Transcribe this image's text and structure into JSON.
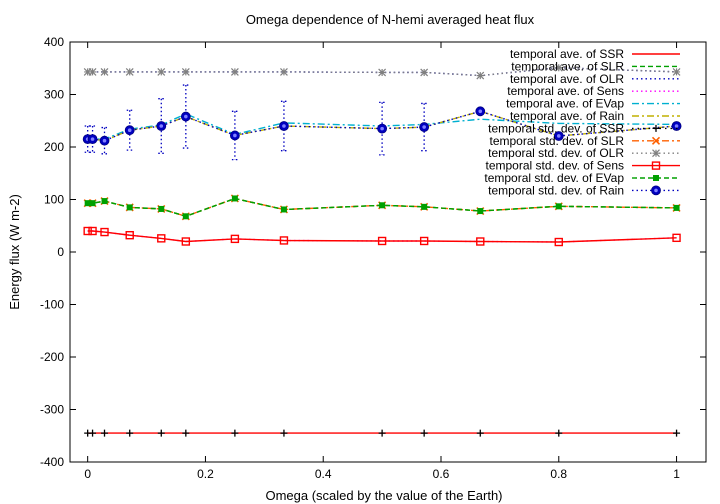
{
  "chart_data": {
    "type": "line",
    "title": "Omega dependence of N-hemi averaged heat flux",
    "xlabel": "Omega (scaled by the value of the Earth)",
    "ylabel": "Energy flux (W m-2)",
    "xlim": [
      -0.03,
      1.05
    ],
    "ylim": [
      -400,
      400
    ],
    "xticks": [
      0,
      0.2,
      0.4,
      0.6,
      0.8,
      1
    ],
    "xtick_labels": [
      "0",
      "0.2",
      "0.4",
      "0.6",
      "0.8",
      "1"
    ],
    "yticks": [
      -400,
      -300,
      -200,
      -100,
      0,
      100,
      200,
      300,
      400
    ],
    "ytick_labels": [
      "-400",
      "-300",
      "-200",
      "-100",
      "0",
      "100",
      "200",
      "300",
      "400"
    ],
    "grid": false,
    "legend_position": "top-right",
    "x": [
      0,
      0.0083,
      0.0286,
      0.0714,
      0.125,
      0.1667,
      0.25,
      0.3333,
      0.5,
      0.5714,
      0.6667,
      0.8,
      1
    ],
    "series": [
      {
        "name": "temporal ave. of SSR",
        "color": "#ff0000",
        "style": "solid",
        "values": [
          -345,
          -345,
          -345,
          -345,
          -345,
          -345,
          -345,
          -345,
          -345,
          -345,
          -345,
          -345,
          -345
        ]
      },
      {
        "name": "temporal ave. of SLR",
        "color": "#00a000",
        "style": "dashed",
        "values": [
          93,
          93,
          97,
          85,
          82,
          68,
          102,
          81,
          89,
          86,
          78,
          87,
          84
        ]
      },
      {
        "name": "temporal ave. of OLR",
        "color": "#0000c0",
        "style": "dotted",
        "values": [
          343,
          343,
          343,
          343,
          343,
          343,
          343,
          343,
          342,
          342,
          336,
          351,
          343
        ]
      },
      {
        "name": "temporal ave. of Sens",
        "color": "#ff00ff",
        "style": "dotted",
        "values": [
          40,
          40,
          38,
          32,
          26,
          20,
          25,
          22,
          21,
          21,
          20,
          19,
          27
        ]
      },
      {
        "name": "temporal ave. of EVap",
        "color": "#00b0d0",
        "style": "dashdot",
        "values": [
          215,
          215,
          215,
          234,
          242,
          263,
          224,
          246,
          240,
          243,
          253,
          245,
          243
        ]
      },
      {
        "name": "temporal ave. of Rain",
        "color": "#c0b000",
        "style": "dashdot",
        "values": [
          215,
          215,
          212,
          232,
          240,
          258,
          222,
          240,
          235,
          238,
          268,
          221,
          240
        ]
      },
      {
        "name": "temporal std. dev. of SSR",
        "color": "#000000",
        "style": "points",
        "marker": "plus",
        "values": [
          -345,
          -345,
          -345,
          -345,
          -345,
          -345,
          -345,
          -345,
          -345,
          -345,
          -345,
          -345,
          -345
        ]
      },
      {
        "name": "temporal std. dev. of SLR",
        "color": "#ff6000",
        "style": "dashdot",
        "marker": "x",
        "values": [
          93,
          93,
          97,
          85,
          82,
          68,
          102,
          81,
          89,
          86,
          78,
          87,
          84
        ]
      },
      {
        "name": "temporal std. dev. of OLR",
        "color": "#808080",
        "style": "dotted",
        "marker": "star",
        "values": [
          343,
          343,
          343,
          343,
          343,
          343,
          343,
          343,
          342,
          342,
          336,
          351,
          343
        ]
      },
      {
        "name": "temporal std. dev. of Sens",
        "color": "#ff0000",
        "style": "solid",
        "marker": "square",
        "values": [
          40,
          40,
          38,
          32,
          26,
          20,
          25,
          22,
          21,
          21,
          20,
          19,
          27
        ]
      },
      {
        "name": "temporal std. dev. of EVap",
        "color": "#00a000",
        "style": "dashed",
        "marker": "filled-square",
        "values": [
          93,
          93,
          97,
          85,
          82,
          68,
          102,
          81,
          89,
          86,
          78,
          87,
          84
        ]
      },
      {
        "name": "temporal std. dev. of Rain",
        "color": "#0000c0",
        "style": "dotted",
        "marker": "circle",
        "values": [
          215,
          215,
          212,
          232,
          240,
          258,
          222,
          240,
          235,
          238,
          268,
          221,
          240
        ],
        "error": [
          25,
          25,
          25,
          38,
          52,
          60,
          46,
          47,
          50,
          45,
          0,
          0,
          0
        ]
      }
    ]
  }
}
